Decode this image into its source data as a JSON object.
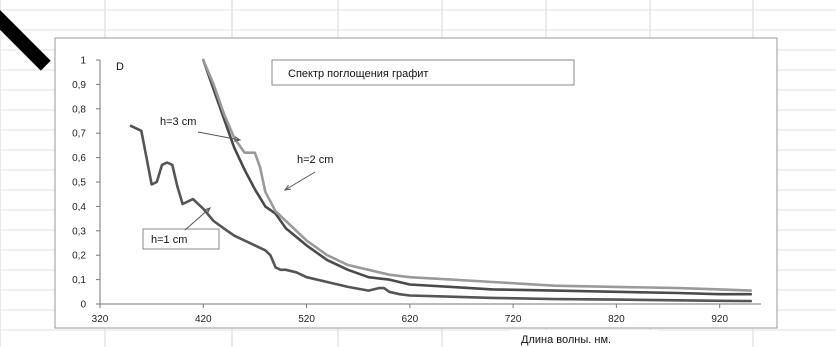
{
  "chart_data": {
    "type": "line",
    "title": "Спектр поглощения графит",
    "xlabel": "Длина волны. нм.",
    "ylabel": "D",
    "xlim": [
      320,
      960
    ],
    "ylim": [
      0,
      1
    ],
    "x_ticks": [
      "320",
      "420",
      "520",
      "620",
      "720",
      "820",
      "920"
    ],
    "y_ticks": [
      "0",
      "0,1",
      "0,2",
      "0,3",
      "0,4",
      "0,5",
      "0,6",
      "0,7",
      "0,8",
      "0,9",
      "1"
    ],
    "grid": false,
    "series": [
      {
        "name": "h=1 cm",
        "color": "#555555",
        "x": [
          350,
          360,
          365,
          370,
          375,
          380,
          385,
          390,
          395,
          400,
          410,
          420,
          430,
          440,
          450,
          460,
          470,
          480,
          485,
          490,
          495,
          500,
          510,
          520,
          540,
          560,
          580,
          590,
          595,
          600,
          610,
          620,
          660,
          700,
          760,
          820,
          880,
          920,
          950
        ],
        "y": [
          0.73,
          0.71,
          0.6,
          0.49,
          0.5,
          0.57,
          0.58,
          0.57,
          0.48,
          0.41,
          0.43,
          0.39,
          0.34,
          0.31,
          0.28,
          0.26,
          0.24,
          0.22,
          0.2,
          0.15,
          0.14,
          0.14,
          0.13,
          0.11,
          0.09,
          0.07,
          0.055,
          0.065,
          0.065,
          0.05,
          0.04,
          0.035,
          0.03,
          0.025,
          0.02,
          0.018,
          0.015,
          0.013,
          0.012
        ]
      },
      {
        "name": "h=3 cm",
        "color": "#4a4a4a",
        "x": [
          420,
          430,
          440,
          450,
          460,
          470,
          480,
          490,
          500,
          520,
          540,
          560,
          580,
          600,
          620,
          660,
          700,
          760,
          820,
          880,
          920,
          950
        ],
        "y": [
          1.0,
          0.88,
          0.76,
          0.64,
          0.55,
          0.47,
          0.4,
          0.37,
          0.31,
          0.24,
          0.18,
          0.14,
          0.11,
          0.1,
          0.08,
          0.07,
          0.06,
          0.055,
          0.05,
          0.045,
          0.04,
          0.04
        ]
      },
      {
        "name": "h=2 cm",
        "color": "#9a9a9a",
        "x": [
          420,
          430,
          440,
          450,
          460,
          470,
          475,
          480,
          490,
          500,
          520,
          540,
          560,
          580,
          600,
          620,
          660,
          700,
          760,
          820,
          880,
          920,
          950
        ],
        "y": [
          1.0,
          0.9,
          0.78,
          0.68,
          0.62,
          0.62,
          0.56,
          0.46,
          0.38,
          0.34,
          0.26,
          0.2,
          0.16,
          0.14,
          0.12,
          0.11,
          0.1,
          0.09,
          0.075,
          0.07,
          0.065,
          0.06,
          0.055
        ]
      }
    ]
  }
}
